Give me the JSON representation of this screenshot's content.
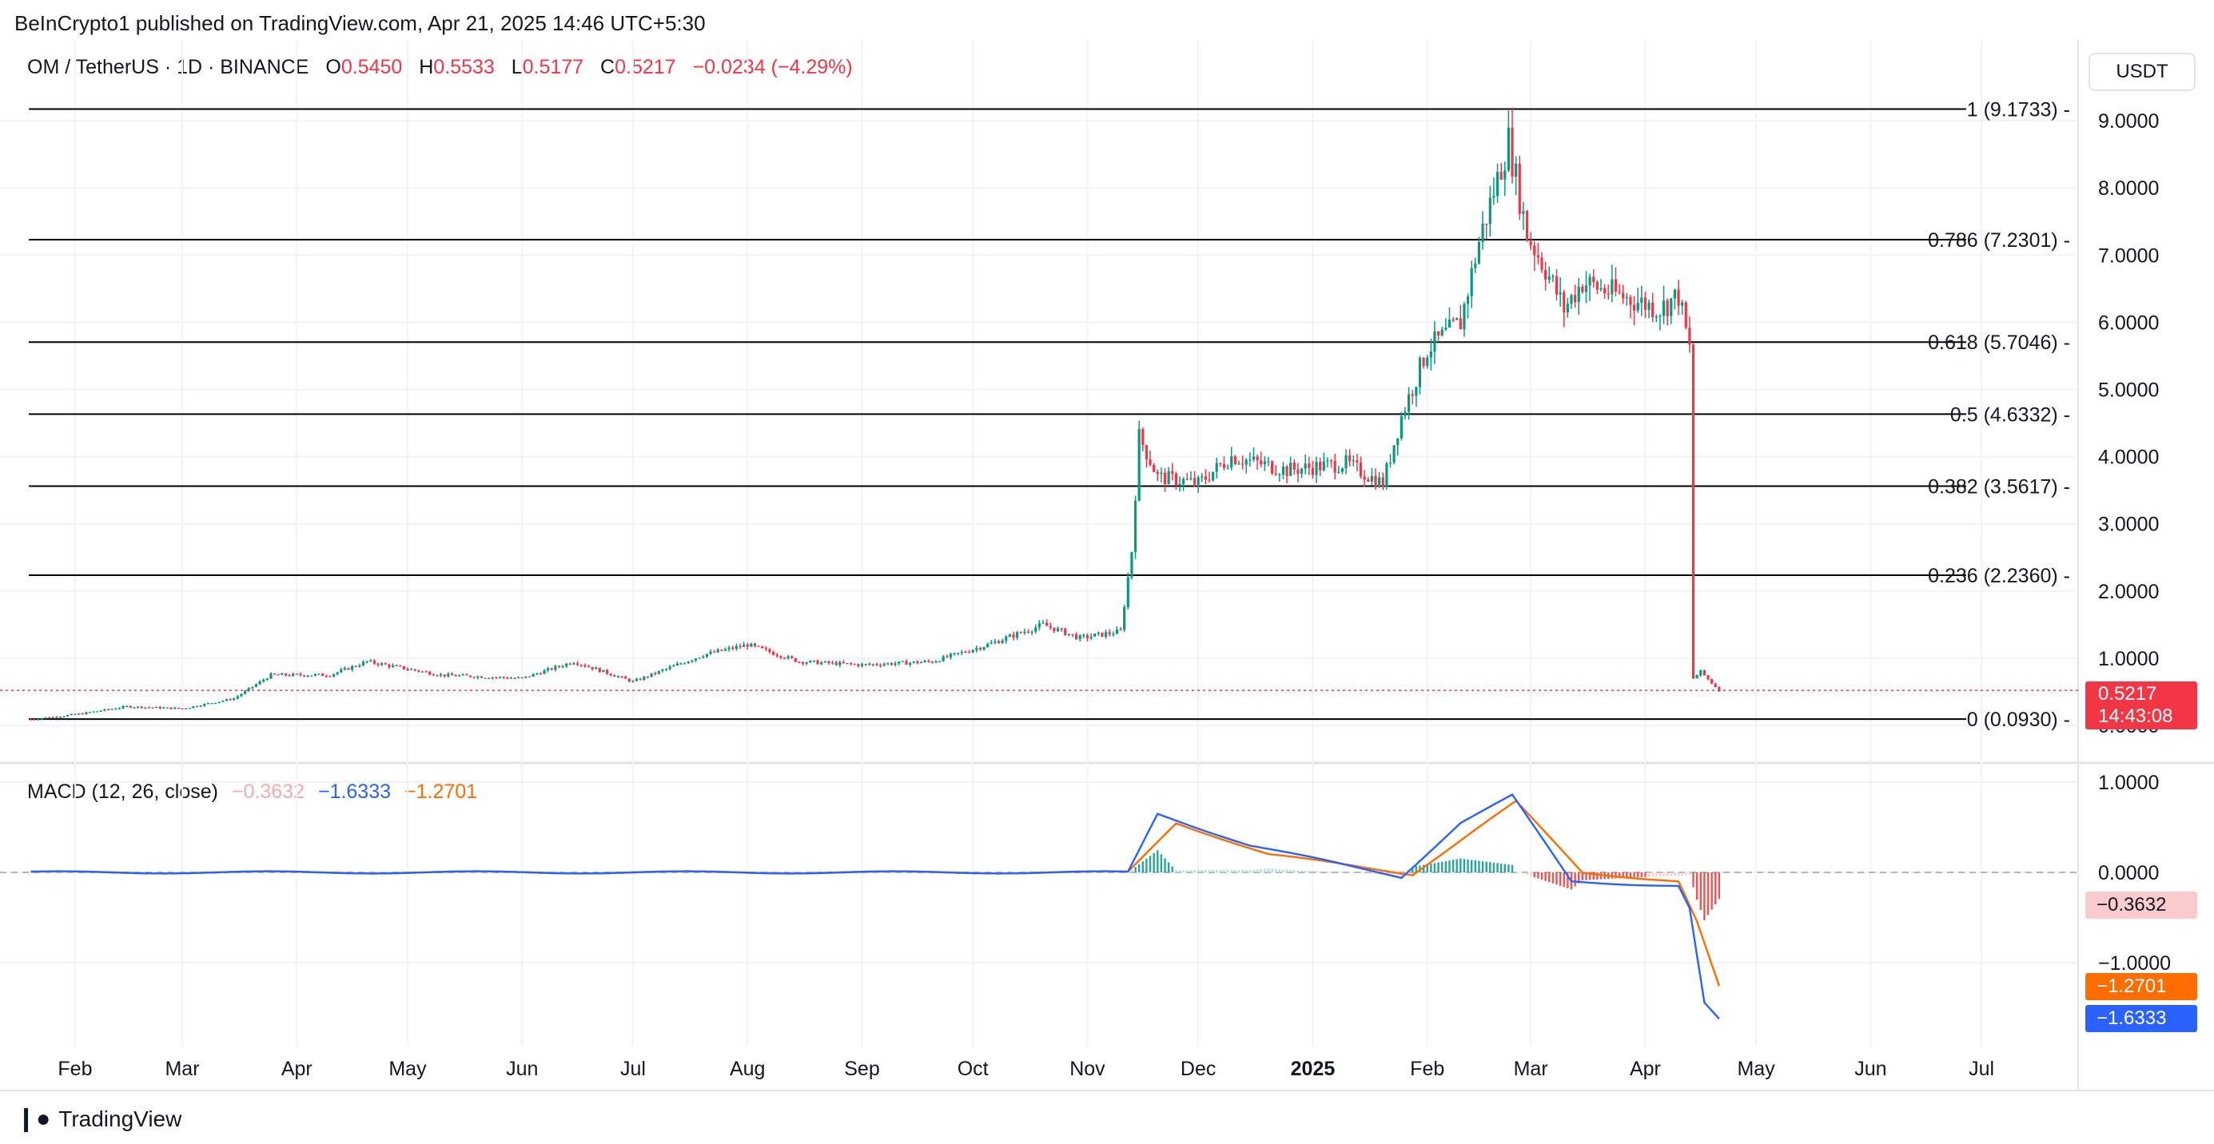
{
  "header": {
    "publish_line": "BeInCrypto1 published on TradingView.com, Apr 21, 2025 14:46 UTC+5:30",
    "symbol_line": "OM / TetherUS · 1D · BINANCE",
    "open_label": "O",
    "open_value": "0.5450",
    "high_label": "H",
    "high_value": "0.5533",
    "low_label": "L",
    "low_value": "0.5177",
    "close_label": "C",
    "close_value": "0.5217",
    "change_value": "−0.0234 (−4.29%)",
    "currency_button": "USDT"
  },
  "macd_legend": {
    "label": "MACD (12, 26, close)",
    "hist": "−0.3632",
    "macd": "−1.6333",
    "signal": "−1.2701"
  },
  "price_tag": {
    "price": "0.5217",
    "countdown": "14:43:08"
  },
  "macd_tags": {
    "hist": "−0.3632",
    "signal": "−1.2701",
    "macd": "−1.6333"
  },
  "footer": {
    "brand": "TradingView"
  },
  "colors": {
    "up": "#089981",
    "down": "#f23645",
    "macd": "#2962ff",
    "signal": "#ff6d00",
    "hist_light": "#fccbcd"
  },
  "chart_data": [
    {
      "type": "candlestick",
      "title": "OM / TetherUS · 1D · BINANCE",
      "y_ticks": [
        "9.0000",
        "8.0000",
        "7.0000",
        "6.0000",
        "5.0000",
        "4.0000",
        "3.0000",
        "2.0000",
        "1.0000",
        "0.0000"
      ],
      "ylim": [
        0,
        9.5
      ],
      "x_ticks": [
        "Feb",
        "Mar",
        "Apr",
        "May",
        "Jun",
        "Jul",
        "Aug",
        "Sep",
        "Oct",
        "Nov",
        "Dec",
        "2025",
        "Feb",
        "Mar",
        "Apr",
        "May",
        "Jun",
        "Jul"
      ],
      "fib_levels": [
        {
          "label": "1 (9.1733)",
          "value": 9.1733
        },
        {
          "label": "0.786 (7.2301)",
          "value": 7.2301
        },
        {
          "label": "0.618 (5.7046)",
          "value": 5.7046
        },
        {
          "label": "0.5 (4.6332)",
          "value": 4.6332
        },
        {
          "label": "0.382 (3.5617)",
          "value": 3.5617
        },
        {
          "label": "0.236 (2.2360)",
          "value": 2.236
        },
        {
          "label": "0 (0.0930)",
          "value": 0.093
        }
      ],
      "price_path": [
        [
          "2024-01-20",
          0.09
        ],
        [
          "2024-02-01",
          0.16
        ],
        [
          "2024-02-15",
          0.28
        ],
        [
          "2024-03-01",
          0.25
        ],
        [
          "2024-03-15",
          0.4
        ],
        [
          "2024-03-25",
          0.75
        ],
        [
          "2024-04-10",
          0.75
        ],
        [
          "2024-04-20",
          0.95
        ],
        [
          "2024-05-10",
          0.75
        ],
        [
          "2024-06-01",
          0.7
        ],
        [
          "2024-06-15",
          0.95
        ],
        [
          "2024-07-01",
          0.65
        ],
        [
          "2024-07-20",
          1.05
        ],
        [
          "2024-08-01",
          1.2
        ],
        [
          "2024-08-15",
          0.95
        ],
        [
          "2024-09-01",
          0.9
        ],
        [
          "2024-09-20",
          0.95
        ],
        [
          "2024-10-05",
          1.2
        ],
        [
          "2024-10-20",
          1.5
        ],
        [
          "2024-10-30",
          1.3
        ],
        [
          "2024-11-10",
          1.4
        ],
        [
          "2024-11-13",
          2.6
        ],
        [
          "2024-11-15",
          4.3
        ],
        [
          "2024-11-20",
          3.7
        ],
        [
          "2024-12-01",
          3.6
        ],
        [
          "2024-12-10",
          4.0
        ],
        [
          "2024-12-25",
          3.8
        ],
        [
          "2025-01-10",
          3.9
        ],
        [
          "2025-01-20",
          3.6
        ],
        [
          "2025-01-25",
          4.6
        ],
        [
          "2025-02-01",
          5.6
        ],
        [
          "2025-02-10",
          6.0
        ],
        [
          "2025-02-15",
          7.2
        ],
        [
          "2025-02-23",
          8.7
        ],
        [
          "2025-02-28",
          7.3
        ],
        [
          "2025-03-05",
          6.8
        ],
        [
          "2025-03-10",
          6.2
        ],
        [
          "2025-03-15",
          6.6
        ],
        [
          "2025-03-25",
          6.4
        ],
        [
          "2025-04-05",
          6.2
        ],
        [
          "2025-04-10",
          6.4
        ],
        [
          "2025-04-13",
          5.6
        ],
        [
          "2025-04-14",
          0.7
        ],
        [
          "2025-04-16",
          0.8
        ],
        [
          "2025-04-21",
          0.5217
        ]
      ]
    },
    {
      "type": "line",
      "title": "MACD (12, 26, close)",
      "y_ticks": [
        "1.0000",
        "0.0000",
        "−1.0000"
      ],
      "ylim": [
        -1.7,
        1.0
      ],
      "series": [
        {
          "name": "MACD",
          "color": "#2962ff",
          "points": [
            [
              "2024-01-20",
              0
            ],
            [
              "2024-11-12",
              0
            ],
            [
              "2024-11-20",
              0.65
            ],
            [
              "2024-12-15",
              0.3
            ],
            [
              "2025-01-25",
              -0.05
            ],
            [
              "2025-02-10",
              0.55
            ],
            [
              "2025-02-24",
              0.85
            ],
            [
              "2025-03-12",
              -0.1
            ],
            [
              "2025-04-10",
              -0.15
            ],
            [
              "2025-04-13",
              -0.4
            ],
            [
              "2025-04-17",
              -1.45
            ],
            [
              "2025-04-21",
              -1.6333
            ]
          ]
        },
        {
          "name": "Signal",
          "color": "#ff6d00",
          "points": [
            [
              "2024-01-20",
              0
            ],
            [
              "2024-11-12",
              0
            ],
            [
              "2024-11-25",
              0.55
            ],
            [
              "2024-12-20",
              0.2
            ],
            [
              "2025-01-28",
              -0.02
            ],
            [
              "2025-02-15",
              0.5
            ],
            [
              "2025-02-25",
              0.78
            ],
            [
              "2025-03-15",
              0.0
            ],
            [
              "2025-04-10",
              -0.1
            ],
            [
              "2025-04-15",
              -0.55
            ],
            [
              "2025-04-21",
              -1.2701
            ]
          ]
        }
      ]
    }
  ]
}
